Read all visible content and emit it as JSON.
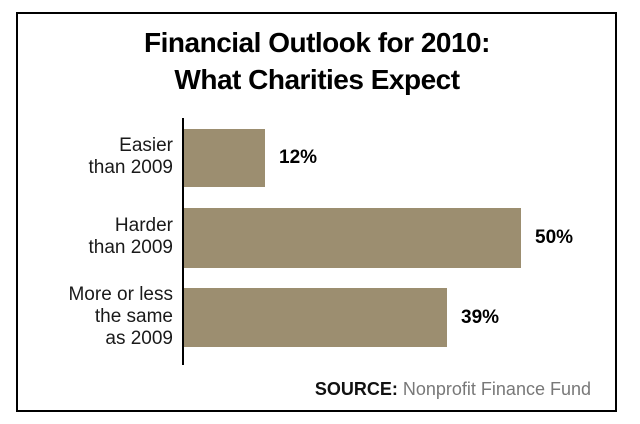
{
  "title": {
    "line1": "Financial Outlook for 2010:",
    "line2": "What Charities Expect"
  },
  "chart_data": {
    "type": "bar",
    "orientation": "horizontal",
    "title": "Financial Outlook for 2010: What Charities Expect",
    "categories": [
      "Easier than 2009",
      "Harder than 2009",
      "More or less the same as 2009"
    ],
    "values": [
      12,
      50,
      39
    ],
    "rows": [
      {
        "label_lines": "Easier\nthan 2009",
        "value": 12,
        "value_label": "12%"
      },
      {
        "label_lines": "Harder\nthan 2009",
        "value": 50,
        "value_label": "50%"
      },
      {
        "label_lines": "More or less\nthe same\nas 2009",
        "value": 39,
        "value_label": "39%"
      }
    ],
    "xlabel": "",
    "ylabel": "",
    "xlim": [
      0,
      50
    ],
    "grid": false,
    "legend": false,
    "bar_color": "#9C8E70",
    "axis_color": "#000000"
  },
  "source": {
    "label": "SOURCE:",
    "text": " Nonprofit Finance Fund"
  }
}
